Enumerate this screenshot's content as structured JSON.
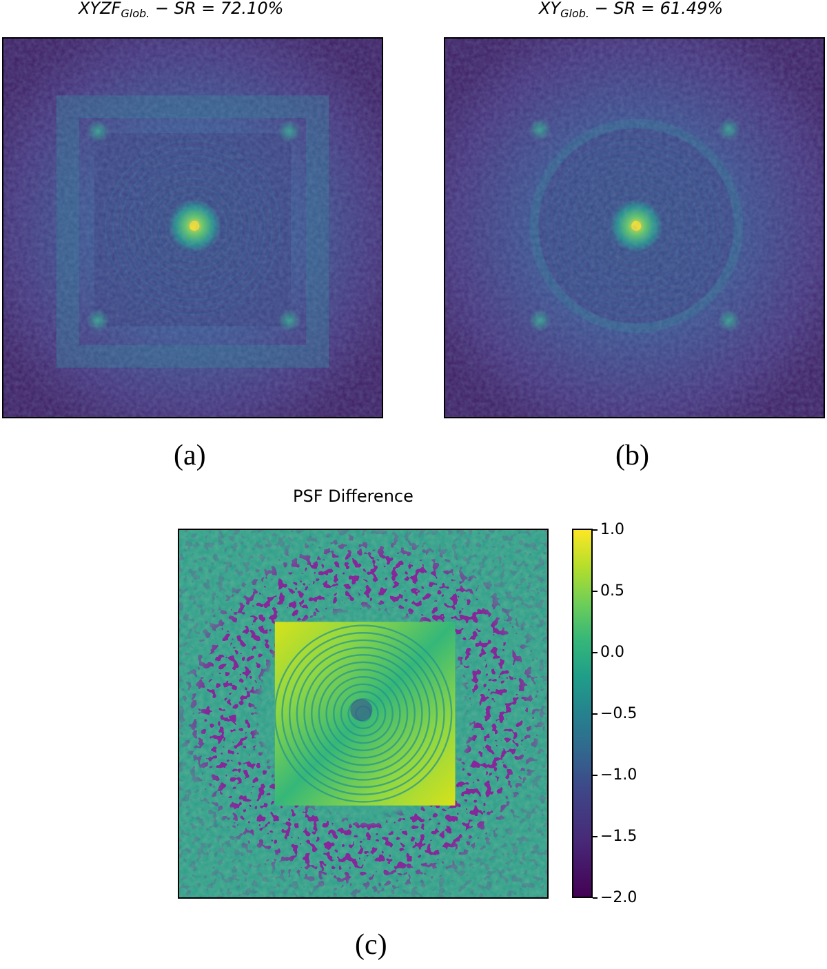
{
  "panels": [
    {
      "title_main": "XYZF",
      "title_sub": "Glob.",
      "title_rest": " − SR = 72.10%",
      "caption": "(a)"
    },
    {
      "title_main": "XY",
      "title_sub": "Glob.",
      "title_rest": " − SR = 61.49%",
      "caption": "(b)"
    },
    {
      "title": "PSF Difference",
      "caption": "(c)"
    }
  ],
  "colorbar": {
    "ticks": [
      "1.0",
      "0.5",
      "0.0",
      "−0.5",
      "−1.0",
      "−1.5",
      "−2.0"
    ],
    "colormap": "viridis"
  },
  "colors": {
    "viridis_dark": "#440154",
    "viridis_mid": "#21918c",
    "viridis_yellow": "#fde725"
  }
}
